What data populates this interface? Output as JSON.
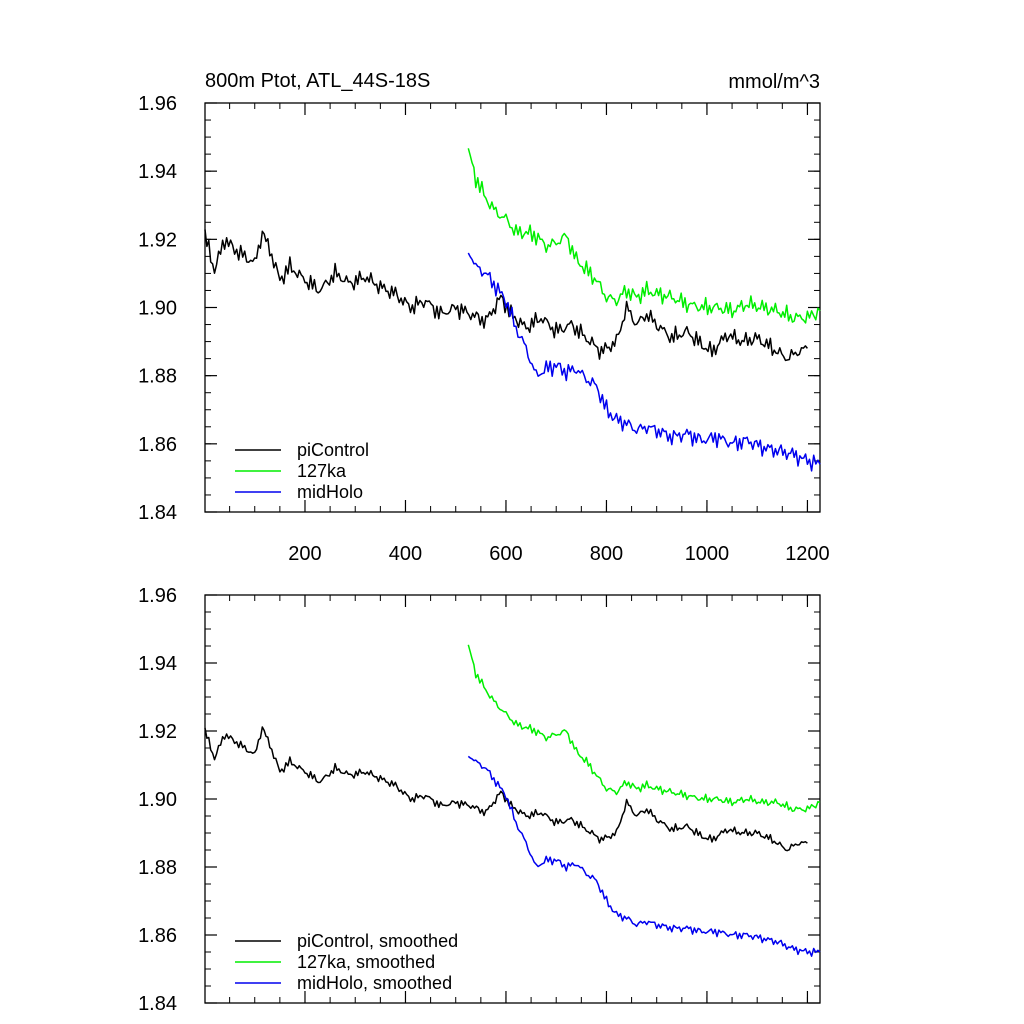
{
  "title_left": "800m Ptot, ATL_44S-18S",
  "title_right": "mmol/m^3",
  "chart_data": [
    {
      "type": "line",
      "name": "raw",
      "title": "800m Ptot, ATL_44S-18S",
      "units": "mmol/m^3",
      "xlim": [
        1,
        1225
      ],
      "ylim": [
        1.84,
        1.96
      ],
      "xticks": [
        200,
        400,
        600,
        800,
        1000,
        1200
      ],
      "yticks": [
        1.84,
        1.86,
        1.88,
        1.9,
        1.92,
        1.94,
        1.96
      ],
      "ytick_labels": [
        "1.84",
        "1.86",
        "1.88",
        "1.90",
        "1.92",
        "1.94",
        "1.96"
      ],
      "xtick_labels": [
        "200",
        "400",
        "600",
        "800",
        "1000",
        "1200"
      ],
      "grid": false,
      "legend_position": "bottom-left",
      "series": [
        {
          "name": "piControl",
          "color": "#000000",
          "x": [
            1,
            20,
            40,
            60,
            80,
            100,
            115,
            130,
            150,
            170,
            200,
            230,
            260,
            290,
            320,
            350,
            380,
            410,
            440,
            470,
            500,
            530,
            560,
            590,
            610,
            640,
            670,
            700,
            730,
            760,
            790,
            820,
            840,
            860,
            880,
            900,
            930,
            960,
            990,
            1010,
            1040,
            1070,
            1100,
            1130,
            1160,
            1180,
            1200
          ],
          "y": [
            1.921,
            1.911,
            1.92,
            1.917,
            1.915,
            1.913,
            1.922,
            1.917,
            1.908,
            1.912,
            1.908,
            1.905,
            1.91,
            1.907,
            1.909,
            1.906,
            1.904,
            1.9,
            1.902,
            1.898,
            1.9,
            1.898,
            1.896,
            1.903,
            1.898,
            1.894,
            1.897,
            1.893,
            1.895,
            1.891,
            1.887,
            1.89,
            1.9,
            1.895,
            1.898,
            1.895,
            1.891,
            1.893,
            1.889,
            1.887,
            1.892,
            1.89,
            1.891,
            1.888,
            1.885,
            1.887,
            1.888
          ]
        },
        {
          "name": "127ka",
          "color": "#00ee00",
          "x": [
            525,
            540,
            560,
            580,
            600,
            620,
            640,
            660,
            680,
            700,
            720,
            740,
            760,
            780,
            800,
            820,
            840,
            860,
            880,
            900,
            930,
            960,
            990,
            1020,
            1050,
            1080,
            1110,
            1140,
            1170,
            1200,
            1225
          ],
          "y": [
            1.946,
            1.938,
            1.932,
            1.928,
            1.926,
            1.922,
            1.922,
            1.921,
            1.918,
            1.919,
            1.921,
            1.914,
            1.911,
            1.908,
            1.903,
            1.902,
            1.905,
            1.903,
            1.905,
            1.904,
            1.903,
            1.901,
            1.9,
            1.9,
            1.899,
            1.901,
            1.9,
            1.899,
            1.897,
            1.897,
            1.899
          ]
        },
        {
          "name": "midHolo",
          "color": "#0000ee",
          "x": [
            525,
            540,
            560,
            580,
            600,
            620,
            640,
            660,
            680,
            700,
            720,
            740,
            760,
            780,
            800,
            820,
            840,
            860,
            880,
            900,
            930,
            960,
            990,
            1020,
            1050,
            1080,
            1110,
            1140,
            1170,
            1200,
            1225
          ],
          "y": [
            1.917,
            1.912,
            1.91,
            1.906,
            1.902,
            1.894,
            1.888,
            1.88,
            1.882,
            1.883,
            1.881,
            1.882,
            1.879,
            1.877,
            1.87,
            1.867,
            1.866,
            1.864,
            1.865,
            1.864,
            1.862,
            1.863,
            1.861,
            1.862,
            1.86,
            1.861,
            1.859,
            1.858,
            1.857,
            1.855,
            1.854
          ]
        }
      ]
    },
    {
      "type": "line",
      "name": "smoothed",
      "xlim": [
        1,
        1225
      ],
      "ylim": [
        1.84,
        1.96
      ],
      "yticks": [
        1.84,
        1.86,
        1.88,
        1.9,
        1.92,
        1.94,
        1.96
      ],
      "ytick_labels": [
        "1.84",
        "1.86",
        "1.88",
        "1.90",
        "1.92",
        "1.94",
        "1.96"
      ],
      "xticks": [
        200,
        400,
        600,
        800,
        1000,
        1200
      ],
      "grid": false,
      "legend_position": "bottom-left",
      "series": [
        {
          "name": "piControl, smoothed",
          "color": "#000000",
          "x": [
            1,
            20,
            40,
            60,
            80,
            100,
            115,
            130,
            150,
            170,
            200,
            230,
            260,
            290,
            320,
            350,
            380,
            410,
            440,
            470,
            500,
            530,
            560,
            590,
            610,
            640,
            670,
            700,
            730,
            760,
            790,
            820,
            840,
            860,
            880,
            900,
            930,
            960,
            990,
            1010,
            1040,
            1070,
            1100,
            1130,
            1160,
            1180,
            1200
          ],
          "y": [
            1.92,
            1.912,
            1.919,
            1.917,
            1.915,
            1.913,
            1.921,
            1.916,
            1.908,
            1.911,
            1.908,
            1.905,
            1.909,
            1.907,
            1.908,
            1.906,
            1.904,
            1.9,
            1.901,
            1.898,
            1.899,
            1.898,
            1.896,
            1.902,
            1.898,
            1.895,
            1.896,
            1.893,
            1.894,
            1.891,
            1.888,
            1.89,
            1.899,
            1.895,
            1.897,
            1.894,
            1.891,
            1.892,
            1.889,
            1.888,
            1.891,
            1.89,
            1.89,
            1.888,
            1.885,
            1.887,
            1.887
          ]
        },
        {
          "name": "127ka, smoothed",
          "color": "#00ee00",
          "x": [
            525,
            540,
            560,
            580,
            600,
            620,
            640,
            660,
            680,
            700,
            720,
            740,
            760,
            780,
            800,
            820,
            840,
            860,
            880,
            900,
            930,
            960,
            990,
            1020,
            1050,
            1080,
            1110,
            1140,
            1170,
            1200,
            1225
          ],
          "y": [
            1.945,
            1.937,
            1.932,
            1.928,
            1.925,
            1.922,
            1.921,
            1.92,
            1.918,
            1.919,
            1.92,
            1.914,
            1.911,
            1.907,
            1.903,
            1.902,
            1.905,
            1.903,
            1.904,
            1.903,
            1.902,
            1.901,
            1.9,
            1.9,
            1.899,
            1.9,
            1.899,
            1.899,
            1.897,
            1.897,
            1.899
          ]
        },
        {
          "name": "midHolo, smoothed",
          "color": "#0000ee",
          "x": [
            525,
            540,
            560,
            580,
            600,
            620,
            640,
            660,
            680,
            700,
            720,
            740,
            760,
            780,
            800,
            820,
            840,
            860,
            880,
            900,
            930,
            960,
            990,
            1020,
            1050,
            1080,
            1110,
            1140,
            1170,
            1200,
            1225
          ],
          "y": [
            1.913,
            1.911,
            1.909,
            1.905,
            1.901,
            1.893,
            1.887,
            1.88,
            1.882,
            1.882,
            1.88,
            1.881,
            1.878,
            1.876,
            1.87,
            1.866,
            1.865,
            1.863,
            1.864,
            1.863,
            1.862,
            1.862,
            1.861,
            1.861,
            1.86,
            1.86,
            1.859,
            1.858,
            1.856,
            1.855,
            1.855
          ]
        }
      ]
    }
  ]
}
